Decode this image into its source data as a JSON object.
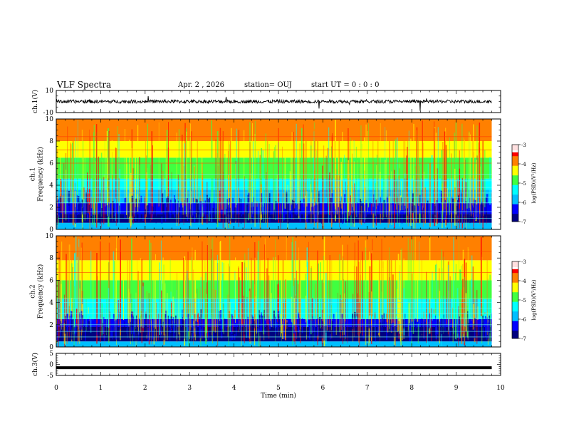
{
  "header": {
    "title": "VLF Spectra",
    "date": "Apr. 2 , 2026",
    "station": "station= OUJ",
    "start": "start  UT =   0 : 0 : 0"
  },
  "chart_data": [
    {
      "type": "line",
      "name": "ch1-waveform",
      "ylabel": "ch.1(V)",
      "ylim": [
        -10,
        10
      ],
      "yticks": [
        "10",
        "-10"
      ],
      "xlim": [
        0,
        9.8
      ],
      "baseline": 0,
      "noise_level": 1.5
    },
    {
      "type": "heatmap",
      "name": "ch1-spectrogram",
      "ylabel": "ch.1\nFrequency  (kHz)",
      "ylim": [
        0,
        10
      ],
      "yticks": [
        "0",
        "2",
        "4",
        "6",
        "8",
        "10"
      ],
      "xlim": [
        0,
        9.8
      ],
      "colorbar": {
        "label": "log(PSD)(V²/Hz)",
        "range": [
          -7,
          -3
        ],
        "ticks": [
          "-3",
          "-4",
          "-5",
          "-6",
          "-7"
        ]
      }
    },
    {
      "type": "heatmap",
      "name": "ch2-spectrogram",
      "ylabel": "ch.2\nFrequency  (kHz)",
      "ylim": [
        0,
        10
      ],
      "yticks": [
        "0",
        "2",
        "4",
        "6",
        "8",
        "10"
      ],
      "xlim": [
        0,
        9.8
      ],
      "colorbar": {
        "label": "log(PSD)(V²/Hz)",
        "range": [
          -7,
          -3
        ],
        "ticks": [
          "-3",
          "-4",
          "-5",
          "-6",
          "-7"
        ]
      }
    },
    {
      "type": "line",
      "name": "ch3-waveform",
      "ylabel": "ch.3(V)",
      "ylim": [
        -5,
        5
      ],
      "yticks": [
        "5",
        "0",
        "-5"
      ],
      "xlim": [
        0,
        9.8
      ],
      "baseline": -1.5
    }
  ],
  "xaxis": {
    "label": "Time  (min)",
    "range": [
      0,
      10
    ],
    "ticks": [
      "0",
      "1",
      "2",
      "3",
      "4",
      "5",
      "6",
      "7",
      "8",
      "9",
      "10"
    ]
  },
  "colormap": [
    "#000080",
    "#0000ff",
    "#00bfff",
    "#00ffff",
    "#40ff40",
    "#ffff00",
    "#ff8000",
    "#ff0000"
  ]
}
